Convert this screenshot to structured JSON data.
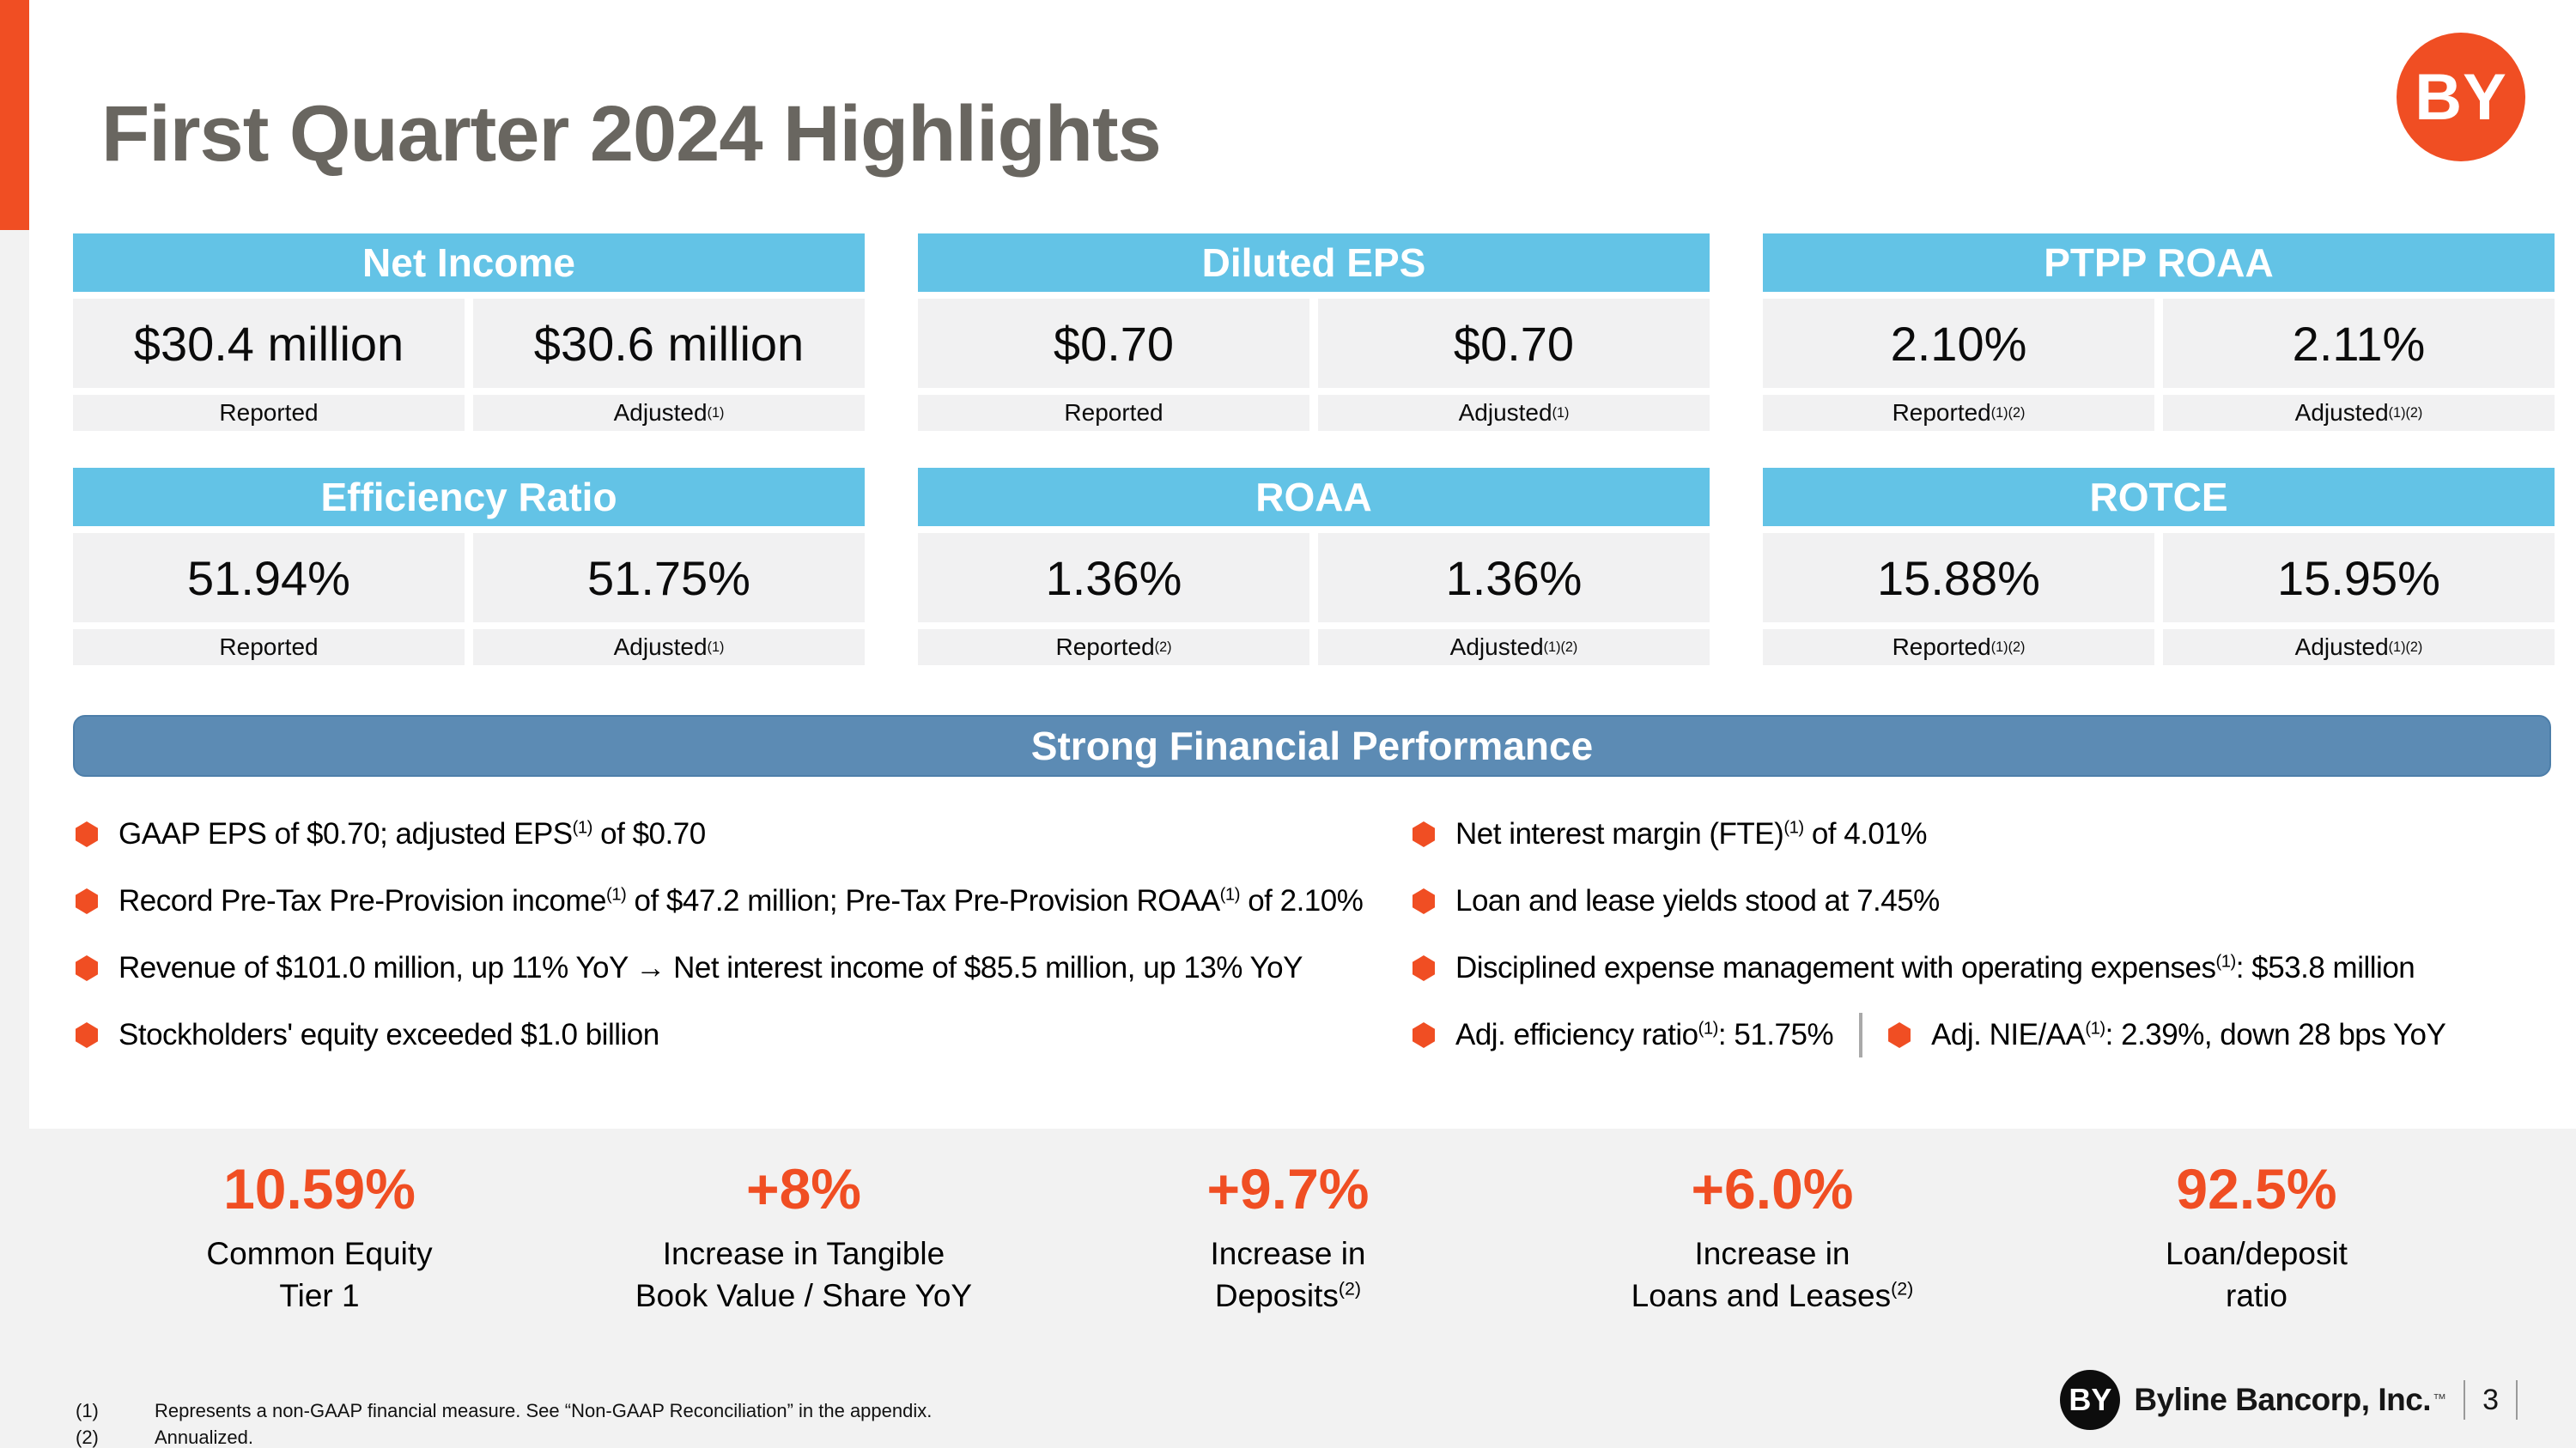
{
  "page": {
    "title": "First Quarter 2024 Highlights",
    "header_logo_text": "BY"
  },
  "colors": {
    "accent_orange": "#F04E23",
    "card_header_blue": "#63C3E6",
    "banner_blue": "#5C8BB4",
    "cell_gray": "#F1F1F2",
    "band_gray": "#F2F2F2",
    "title_gray": "#696660"
  },
  "cards": [
    {
      "title": "Net Income",
      "left": {
        "value": "$30.4 million",
        "label": [
          {
            "t": "Reported"
          }
        ]
      },
      "right": {
        "value": "$30.6 million",
        "label": [
          {
            "t": "Adjusted"
          },
          {
            "t": "(1)",
            "s": true
          }
        ]
      }
    },
    {
      "title": "Diluted EPS",
      "left": {
        "value": "$0.70",
        "label": [
          {
            "t": "Reported"
          }
        ]
      },
      "right": {
        "value": "$0.70",
        "label": [
          {
            "t": "Adjusted"
          },
          {
            "t": "(1)",
            "s": true
          }
        ]
      }
    },
    {
      "title": "PTPP ROAA",
      "left": {
        "value": "2.10%",
        "label": [
          {
            "t": "Reported"
          },
          {
            "t": "(1)(2)",
            "s": true
          }
        ]
      },
      "right": {
        "value": "2.11%",
        "label": [
          {
            "t": "Adjusted"
          },
          {
            "t": "(1)(2)",
            "s": true
          }
        ]
      }
    },
    {
      "title": "Efficiency Ratio",
      "left": {
        "value": "51.94%",
        "label": [
          {
            "t": "Reported"
          }
        ]
      },
      "right": {
        "value": "51.75%",
        "label": [
          {
            "t": "Adjusted"
          },
          {
            "t": "(1)",
            "s": true
          }
        ]
      }
    },
    {
      "title": "ROAA",
      "left": {
        "value": "1.36%",
        "label": [
          {
            "t": "Reported"
          },
          {
            "t": "(2)",
            "s": true
          }
        ]
      },
      "right": {
        "value": "1.36%",
        "label": [
          {
            "t": "Adjusted"
          },
          {
            "t": "(1)(2)",
            "s": true
          }
        ]
      }
    },
    {
      "title": "ROTCE",
      "left": {
        "value": "15.88%",
        "label": [
          {
            "t": "Reported"
          },
          {
            "t": "(1)(2)",
            "s": true
          }
        ]
      },
      "right": {
        "value": "15.95%",
        "label": [
          {
            "t": "Adjusted"
          },
          {
            "t": "(1)(2)",
            "s": true
          }
        ]
      }
    }
  ],
  "banner": {
    "label": "Strong Financial Performance"
  },
  "bullets_left": [
    [
      {
        "t": "GAAP EPS of $0.70; adjusted EPS"
      },
      {
        "t": "(1)",
        "s": true
      },
      {
        "t": " of $0.70"
      }
    ],
    [
      {
        "t": "Record Pre-Tax Pre-Provision income"
      },
      {
        "t": "(1)",
        "s": true
      },
      {
        "t": " of $47.2 million; Pre-Tax Pre-Provision ROAA"
      },
      {
        "t": "(1)",
        "s": true
      },
      {
        "t": " of 2.10%"
      }
    ],
    [
      {
        "t": "Revenue of $101.0 million, up 11% YoY → Net interest income of $85.5 million, up 13% YoY"
      }
    ],
    [
      {
        "t": "Stockholders' equity exceeded $1.0 billion"
      }
    ]
  ],
  "bullets_right": [
    [
      {
        "t": "Net interest margin (FTE)"
      },
      {
        "t": "(1)",
        "s": true
      },
      {
        "t": " of 4.01%"
      }
    ],
    [
      {
        "t": "Loan and lease yields stood at 7.45%"
      }
    ],
    [
      {
        "t": "Disciplined expense management with operating expenses"
      },
      {
        "t": "(1)",
        "s": true
      },
      {
        "t": ": $53.8 million"
      }
    ]
  ],
  "bullets_right_pair": [
    [
      {
        "t": "Adj. efficiency ratio"
      },
      {
        "t": "(1)",
        "s": true
      },
      {
        "t": ": 51.75%"
      }
    ],
    [
      {
        "t": "Adj. NIE/AA"
      },
      {
        "t": "(1)",
        "s": true
      },
      {
        "t": ": 2.39%, down 28 bps YoY"
      }
    ]
  ],
  "stats": [
    {
      "value": "10.59%",
      "label_lines": [
        [
          {
            "t": "Common Equity"
          }
        ],
        [
          {
            "t": "Tier 1"
          }
        ]
      ]
    },
    {
      "value": "+8%",
      "label_lines": [
        [
          {
            "t": "Increase in Tangible"
          }
        ],
        [
          {
            "t": "Book Value / Share YoY"
          }
        ]
      ]
    },
    {
      "value": "+9.7%",
      "label_lines": [
        [
          {
            "t": "Increase in"
          }
        ],
        [
          {
            "t": "Deposits"
          },
          {
            "t": "(2)",
            "s": true
          }
        ]
      ]
    },
    {
      "value": "+6.0%",
      "label_lines": [
        [
          {
            "t": "Increase in"
          }
        ],
        [
          {
            "t": "Loans and Leases"
          },
          {
            "t": "(2)",
            "s": true
          }
        ]
      ]
    },
    {
      "value": "92.5%",
      "label_lines": [
        [
          {
            "t": "Loan/deposit"
          }
        ],
        [
          {
            "t": "ratio"
          }
        ]
      ]
    }
  ],
  "footnotes": [
    {
      "num": "(1)",
      "text": "Represents a non-GAAP financial measure.  See “Non-GAAP Reconciliation” in the appendix."
    },
    {
      "num": "(2)",
      "text": "Annualized."
    }
  ],
  "footer": {
    "logo_text": "BY",
    "brand": "Byline Bancorp, Inc.",
    "trademark": "™",
    "page_number": "3"
  }
}
